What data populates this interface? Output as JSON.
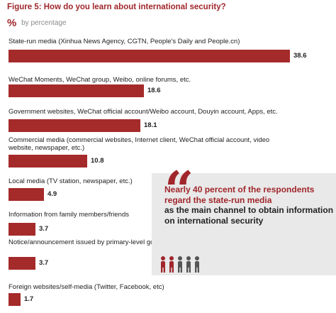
{
  "header": {
    "title": "Figure 5: How do you learn about international security?",
    "pct_icon": "%",
    "subtitle": "by percentage"
  },
  "chart_data": {
    "type": "bar",
    "orientation": "horizontal",
    "title": "Figure 5: How do you learn about international security?",
    "subtitle": "by percentage",
    "categories": [
      "State-run media (Xinhua News Agency, CGTN, People's Daily and People.cn)",
      "WeChat Moments, WeChat group, Weibo, online forums, etc.",
      "Government websites, WeChat official account/Weibo account, Douyin account, Apps, etc.",
      "Commercial media (commercial websites, Internet client, WeChat official account, video website, newspaper, etc.)",
      "Local media (TV station, newspaper, etc.)",
      "Information from family members/friends",
      "Notice/announcement issued by primary-level governments or the villagers committees",
      "Foreign websites/self-media (Twitter, Facebook, etc)"
    ],
    "values": [
      38.6,
      18.6,
      18.1,
      10.8,
      4.9,
      3.7,
      3.7,
      1.7
    ],
    "value_labels": [
      "38.6",
      "18.6",
      "18.1",
      "10.8",
      "4.9",
      "3.7",
      "3.7",
      "1.7"
    ],
    "xlim": [
      0,
      38.6
    ],
    "grid": false,
    "bar_color": "#a52a2a"
  },
  "callout": {
    "quote_mark": "“",
    "highlight": "Nearly 40 percent of the respondents regard the state-run media",
    "rest": "as the main channel to obtain information on international security",
    "people_icon": "people-row-icon",
    "people_count": 5
  },
  "colors": {
    "accent": "#a0262b",
    "bar": "#a52a2a",
    "callout_bg": "#e9e9e9"
  }
}
